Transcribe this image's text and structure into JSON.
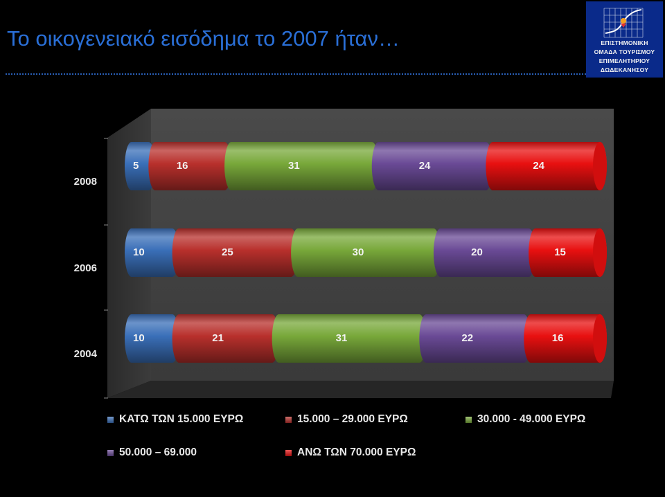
{
  "slide": {
    "title": "Το οικογενειακό εισόδημα το 2007 ήταν…",
    "logo": {
      "lines": [
        "ΕΠΙΣΤΗΜΟΝΙΚΗ",
        "ΟΜΑΔΑ ΤΟΥΡΙΣΜΟΥ",
        "ΕΠΙΜΕΛΗΤΗΡΙΟΥ",
        "ΔΩΔΕΚΑΝΗΣΟΥ"
      ]
    }
  },
  "chart_data": {
    "type": "bar",
    "orientation": "horizontal",
    "stacked": true,
    "style": "3d-cylinder",
    "categories": [
      "2008",
      "2006",
      "2004"
    ],
    "series": [
      {
        "name": "ΚΑΤΩ ΤΩΝ 15.000 ΕΥΡΩ",
        "color": "#3a6fb8",
        "values": [
          5,
          10,
          10
        ]
      },
      {
        "name": "15.000 – 29.000 ΕΥΡΩ",
        "color": "#b8302c",
        "values": [
          16,
          25,
          21
        ]
      },
      {
        "name": "30.000 - 49.000 ΕΥΡΩ",
        "color": "#78a83a",
        "values": [
          31,
          30,
          31
        ]
      },
      {
        "name": "50.000 – 69.000",
        "color": "#6a4a96",
        "values": [
          24,
          20,
          22
        ]
      },
      {
        "name": "ΑΝΩ ΤΩΝ 70.000 ΕΥΡΩ",
        "color": "#e81010",
        "values": [
          24,
          15,
          16
        ]
      }
    ],
    "legend_position": "bottom",
    "data_labels": true,
    "grid": false,
    "background": "#000000"
  }
}
